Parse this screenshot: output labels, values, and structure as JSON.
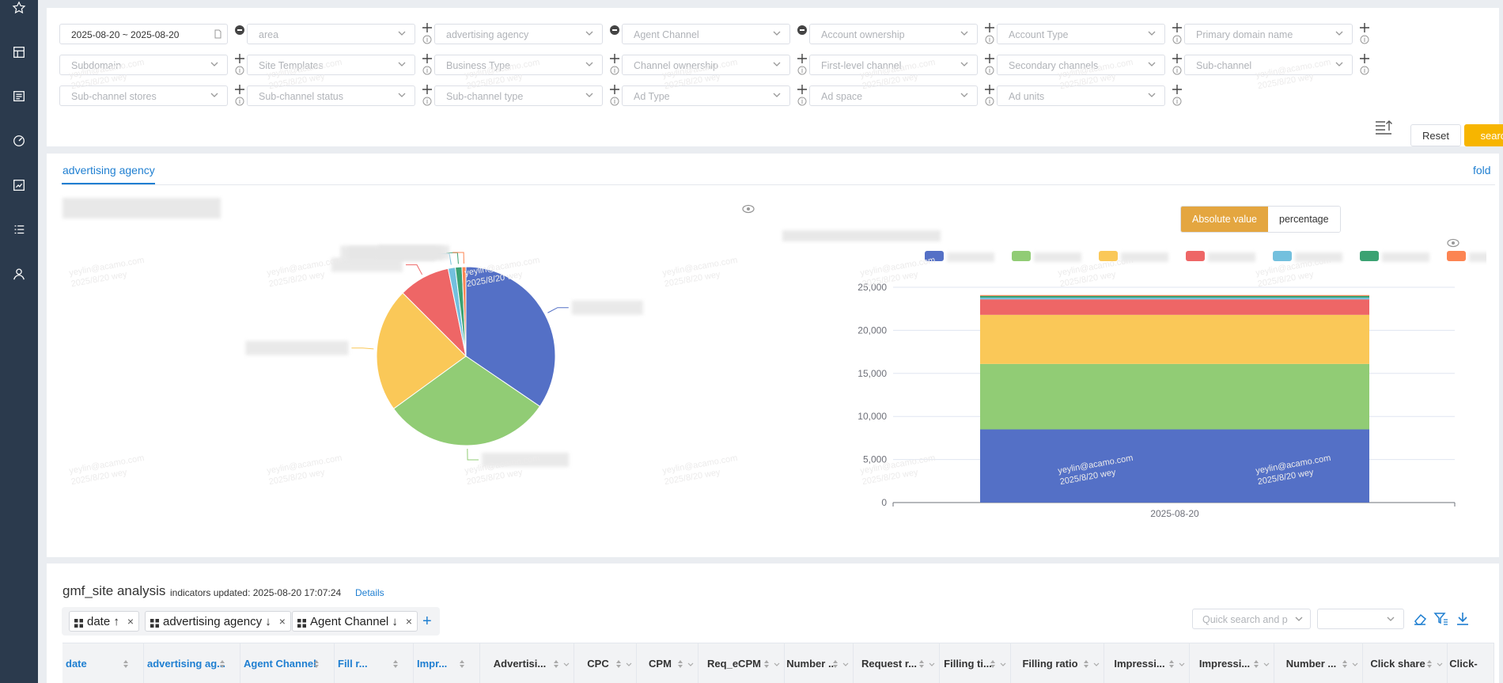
{
  "sidebar": {
    "icons": [
      "star-icon",
      "grid-icon",
      "report-icon",
      "dashboard-icon",
      "analysis-icon",
      "list-icon",
      "user-icon"
    ]
  },
  "filters": {
    "date_range": "2025-08-20 ~ 2025-08-20",
    "row1": [
      "area",
      "advertising agency",
      "Agent Channel",
      "Account ownership",
      "Account Type",
      "Primary domain name"
    ],
    "row2": [
      "Subdomain",
      "Site Templates",
      "Business Type",
      "Channel ownership",
      "First-level channel",
      "Secondary channels",
      "Sub-channel"
    ],
    "row3": [
      "Sub-channel stores",
      "Sub-channel status",
      "Sub-channel type",
      "Ad Type",
      "Ad space",
      "Ad units"
    ],
    "reset_label": "Reset",
    "search_label": "search"
  },
  "charts": {
    "tab_label": "advertising agency",
    "fold_label": "fold",
    "toggle": {
      "absolute": "Absolute value",
      "percentage": "percentage"
    },
    "colors": [
      "#5470c6",
      "#91cc75",
      "#fac858",
      "#ee6666",
      "#73c0de",
      "#3ba272",
      "#fc8452"
    ]
  },
  "chart_data": [
    {
      "type": "pie",
      "title": "",
      "slices": [
        {
          "value": 34.5,
          "color": "#5470c6"
        },
        {
          "value": 30.5,
          "color": "#91cc75"
        },
        {
          "value": 22.5,
          "color": "#fac858"
        },
        {
          "value": 9.3,
          "color": "#ee6666"
        },
        {
          "value": 1.3,
          "color": "#73c0de"
        },
        {
          "value": 1.2,
          "color": "#3ba272"
        },
        {
          "value": 0.7,
          "color": "#fc8452"
        }
      ]
    },
    {
      "type": "bar",
      "stacked": true,
      "title": "",
      "categories": [
        "2025-08-20"
      ],
      "ylim": [
        0,
        25000
      ],
      "yticks": [
        "25,000",
        "20,000",
        "15,000",
        "10,000",
        "5,000",
        "0"
      ],
      "series": [
        {
          "values": [
            8500
          ],
          "color": "#5470c6"
        },
        {
          "values": [
            7600
          ],
          "color": "#91cc75"
        },
        {
          "values": [
            5700
          ],
          "color": "#fac858"
        },
        {
          "values": [
            1800
          ],
          "color": "#ee6666"
        },
        {
          "values": [
            200
          ],
          "color": "#73c0de"
        },
        {
          "values": [
            200
          ],
          "color": "#3ba272"
        },
        {
          "values": [
            100
          ],
          "color": "#fc8452"
        }
      ]
    }
  ],
  "analysis": {
    "title": "gmf_site analysis",
    "updated": "indicators updated: 2025-08-20 17:07:24",
    "details_label": "Details",
    "chips": [
      {
        "label": "date ↑"
      },
      {
        "label": "advertising agency ↓"
      },
      {
        "label": "Agent Channel ↓"
      }
    ],
    "quick_search_placeholder": "Quick search and p",
    "columns": [
      "date",
      "advertising ag...",
      "Agent Channel",
      "Fill r...",
      "Impr...",
      "Advertisi...",
      "CPC",
      "CPM",
      "Req_eCPM",
      "Number ...",
      "Request r...",
      "Filling ti...",
      "Filling ratio",
      "Impressi...",
      "Impressi...",
      "Number ...",
      "Click share",
      "Click-"
    ]
  },
  "watermark": {
    "line1": "yeylin@acamo.com",
    "line2": "2025/8/20 wey"
  }
}
